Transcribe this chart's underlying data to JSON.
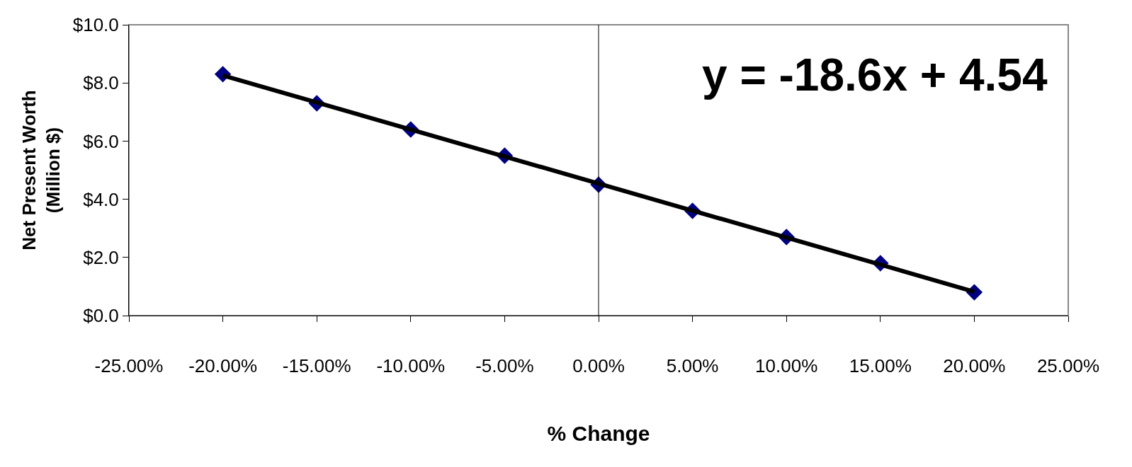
{
  "chart_data": {
    "type": "scatter",
    "xlabel": "% Change",
    "ylabel": "Net Present Worth\n(Million $)",
    "annotations": [
      "y = -18.6x + 4.54"
    ],
    "x": [
      -0.2,
      -0.15,
      -0.1,
      -0.05,
      0.0,
      0.05,
      0.1,
      0.15,
      0.2
    ],
    "series": [
      {
        "type": "line",
        "color": "#000000",
        "x": [
          -0.2,
          0.2
        ],
        "values": [
          8.26,
          0.82
        ],
        "marker": "none"
      },
      {
        "color": "#000080",
        "values": [
          8.3,
          7.3,
          6.4,
          5.5,
          4.5,
          3.6,
          2.7,
          1.8,
          0.8
        ],
        "marker": "diamond"
      }
    ],
    "xlim": [
      -0.25,
      0.25
    ],
    "xticks": [
      {
        "value": -0.25,
        "label": "-25.00%"
      },
      {
        "value": -0.2,
        "label": "-20.00%"
      },
      {
        "value": -0.15,
        "label": "-15.00%"
      },
      {
        "value": -0.1,
        "label": "-10.00%"
      },
      {
        "value": -0.05,
        "label": "-5.00%"
      },
      {
        "value": 0,
        "label": "0.00%"
      },
      {
        "value": 0.05,
        "label": "5.00%"
      },
      {
        "value": 0.1,
        "label": "10.00%"
      },
      {
        "value": 0.15,
        "label": "15.00%"
      },
      {
        "value": 0.2,
        "label": "20.00%"
      },
      {
        "value": 0.25,
        "label": "25.00%"
      }
    ],
    "ylim": [
      0,
      10
    ],
    "yticks": [
      {
        "value": 0,
        "label": "$0.0"
      },
      {
        "value": 2,
        "label": "$2.0"
      },
      {
        "value": 4,
        "label": "$4.0"
      },
      {
        "value": 6,
        "label": "$6.0"
      },
      {
        "value": 8,
        "label": "$8.0"
      },
      {
        "value": 10,
        "label": "$10.0"
      }
    ],
    "ref_lines": [
      {
        "axis": "x",
        "value": 0,
        "color": "#000000"
      }
    ],
    "grid": false
  }
}
